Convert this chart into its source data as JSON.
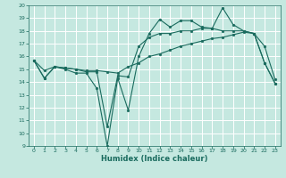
{
  "xlabel": "Humidex (Indice chaleur)",
  "xlim": [
    -0.5,
    23.5
  ],
  "ylim": [
    9,
    20
  ],
  "xticks": [
    0,
    1,
    2,
    3,
    4,
    5,
    6,
    7,
    8,
    9,
    10,
    11,
    12,
    13,
    14,
    15,
    16,
    17,
    18,
    19,
    20,
    21,
    22,
    23
  ],
  "yticks": [
    9,
    10,
    11,
    12,
    13,
    14,
    15,
    16,
    17,
    18,
    19,
    20
  ],
  "bg_color": "#c5e8e0",
  "grid_color": "#ffffff",
  "line_color": "#1a6b5e",
  "line1_x": [
    0,
    1,
    2,
    3,
    4,
    5,
    6,
    7,
    8,
    9,
    10,
    11,
    12,
    13,
    14,
    15,
    16,
    17,
    18,
    19,
    20,
    21,
    22,
    23
  ],
  "line1_y": [
    15.7,
    14.3,
    15.2,
    15.0,
    14.7,
    14.7,
    13.5,
    9.0,
    14.3,
    11.8,
    16.0,
    17.8,
    18.9,
    18.3,
    18.8,
    18.8,
    18.3,
    18.2,
    19.8,
    18.5,
    18.0,
    17.8,
    15.5,
    13.9
  ],
  "line2_x": [
    0,
    1,
    2,
    3,
    4,
    5,
    6,
    7,
    8,
    9,
    10,
    11,
    12,
    13,
    14,
    15,
    16,
    17,
    18,
    19,
    20,
    21,
    22,
    23
  ],
  "line2_y": [
    15.7,
    14.3,
    15.2,
    15.1,
    15.0,
    14.8,
    14.8,
    10.5,
    14.5,
    14.4,
    16.8,
    17.5,
    17.8,
    17.8,
    18.0,
    18.0,
    18.2,
    18.2,
    18.0,
    18.0,
    18.0,
    17.8,
    15.5,
    13.9
  ],
  "line3_x": [
    0,
    1,
    2,
    3,
    4,
    5,
    6,
    7,
    8,
    9,
    10,
    11,
    12,
    13,
    14,
    15,
    16,
    17,
    18,
    19,
    20,
    21,
    22,
    23
  ],
  "line3_y": [
    15.7,
    14.9,
    15.2,
    15.1,
    15.0,
    14.9,
    14.9,
    14.8,
    14.7,
    15.2,
    15.5,
    16.0,
    16.2,
    16.5,
    16.8,
    17.0,
    17.2,
    17.4,
    17.5,
    17.7,
    17.9,
    17.8,
    16.8,
    14.2
  ]
}
